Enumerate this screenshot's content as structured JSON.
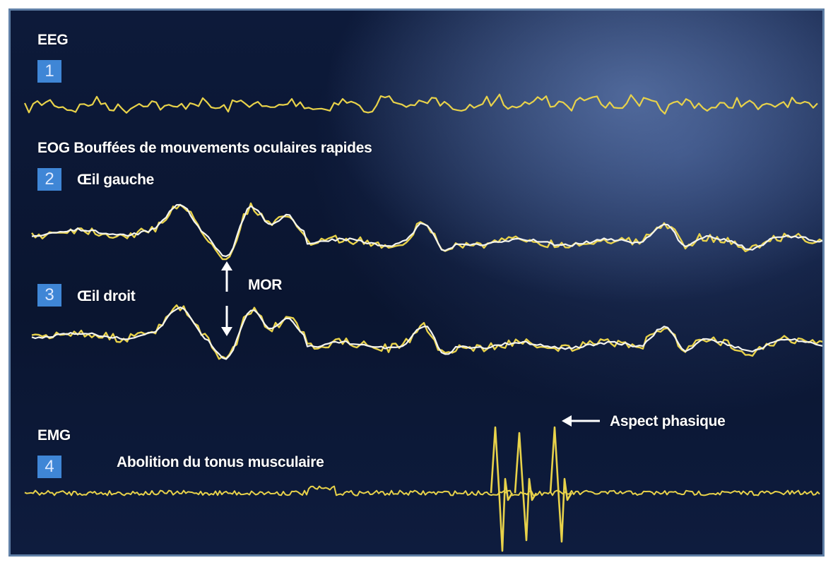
{
  "labels": {
    "eeg": "EEG",
    "eog_title": "EOG  Bouffées de mouvements oculaires rapides",
    "left_eye": "Œil gauche",
    "right_eye": "Œil droit",
    "mor": "MOR",
    "emg": "EMG",
    "muscle": "Abolition du tonus musculaire",
    "phasic": "Aspect phasique"
  },
  "badges": {
    "b1": "1",
    "b2": "2",
    "b3": "3",
    "b4": "4"
  },
  "colors": {
    "trace_yellow": "#e8d24a",
    "trace_white": "#f4f4ee",
    "badge_blue": "#3f86d6"
  }
}
